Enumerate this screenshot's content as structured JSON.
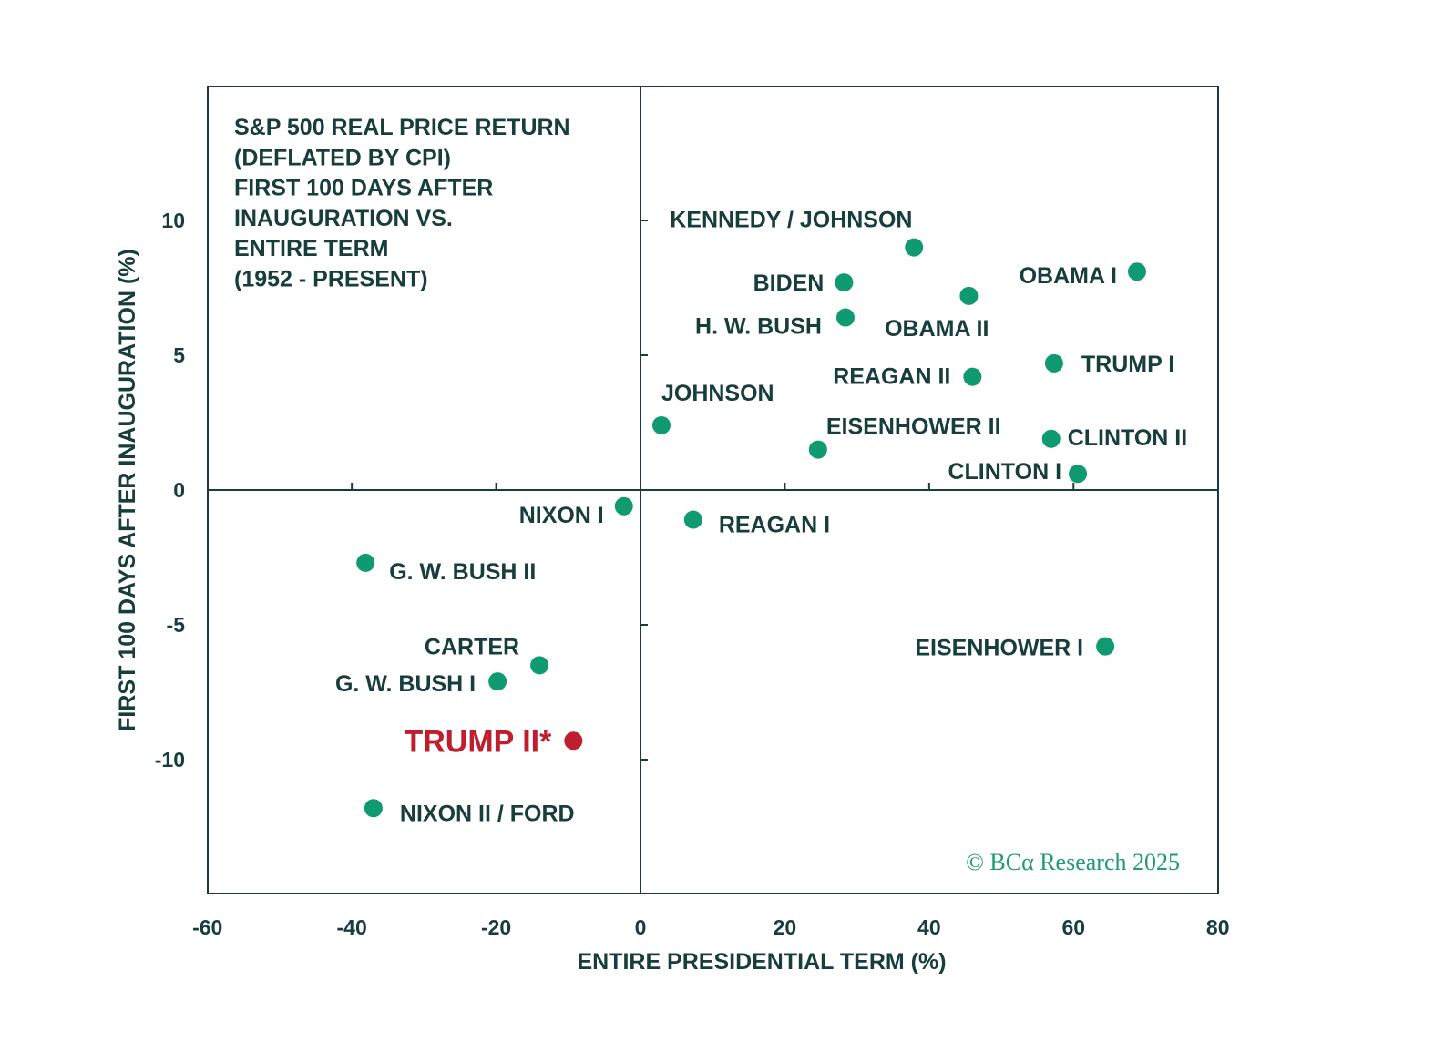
{
  "chart_data": {
    "type": "scatter",
    "title_lines": [
      "S&P 500 REAL PRICE RETURN",
      "(DEFLATED BY CPI)",
      "FIRST 100 DAYS AFTER",
      "INAUGURATION VS.",
      "ENTIRE TERM",
      "(1952 - PRESENT)"
    ],
    "xlabel": "ENTIRE PRESIDENTIAL TERM (%)",
    "ylabel": "FIRST 100 DAYS AFTER INAUGURATION  (%)",
    "xlim": [
      -60,
      80
    ],
    "ylim": [
      -15,
      15
    ],
    "xticks": [
      -60,
      -40,
      -20,
      0,
      20,
      40,
      60,
      80
    ],
    "xtick_labels": [
      "-60",
      "-40",
      "-20",
      "0",
      "20",
      "40",
      "60",
      "80"
    ],
    "yticks": [
      10,
      5,
      0,
      -5,
      -10
    ],
    "ytick_labels": [
      "10",
      "5",
      "0",
      "-5",
      "-10"
    ],
    "grid": false,
    "quadrant_lines": true,
    "colors": {
      "default_point": "#0f9a72",
      "highlight_point": "#be1e2d",
      "text": "#173d3d",
      "highlight_text": "#be1e2d",
      "copyright": "#1e9a78"
    },
    "points": [
      {
        "name": "KENNEDY / JOHNSON",
        "x": 37.9,
        "y": 9.0,
        "highlight": false
      },
      {
        "name": "OBAMA I",
        "x": 68.8,
        "y": 8.1,
        "highlight": false
      },
      {
        "name": "BIDEN",
        "x": 28.2,
        "y": 7.7,
        "highlight": false
      },
      {
        "name": "OBAMA II",
        "x": 45.5,
        "y": 7.2,
        "highlight": false
      },
      {
        "name": "H. W. BUSH",
        "x": 28.4,
        "y": 6.4,
        "highlight": false
      },
      {
        "name": "TRUMP I",
        "x": 57.3,
        "y": 4.7,
        "highlight": false
      },
      {
        "name": "REAGAN II",
        "x": 46.0,
        "y": 4.2,
        "highlight": false
      },
      {
        "name": "JOHNSON",
        "x": 2.9,
        "y": 2.4,
        "highlight": false
      },
      {
        "name": "CLINTON II",
        "x": 56.9,
        "y": 1.9,
        "highlight": false
      },
      {
        "name": "EISENHOWER II",
        "x": 24.6,
        "y": 1.5,
        "highlight": false
      },
      {
        "name": "CLINTON I",
        "x": 60.6,
        "y": 0.6,
        "highlight": false
      },
      {
        "name": "NIXON I",
        "x": -2.3,
        "y": -0.6,
        "highlight": false
      },
      {
        "name": "REAGAN I",
        "x": 7.3,
        "y": -1.1,
        "highlight": false
      },
      {
        "name": "G. W. BUSH II",
        "x": -38.1,
        "y": -2.7,
        "highlight": false
      },
      {
        "name": "EISENHOWER I",
        "x": 64.4,
        "y": -5.8,
        "highlight": false
      },
      {
        "name": "CARTER",
        "x": -14.0,
        "y": -6.5,
        "highlight": false
      },
      {
        "name": "G. W. BUSH I",
        "x": -19.8,
        "y": -7.1,
        "highlight": false
      },
      {
        "name": "TRUMP II*",
        "x": -9.3,
        "y": -9.3,
        "highlight": true
      },
      {
        "name": "NIXON II / FORD",
        "x": -37.0,
        "y": -11.8,
        "highlight": false
      }
    ],
    "annotations": [
      "© BCα Research 2025"
    ]
  }
}
